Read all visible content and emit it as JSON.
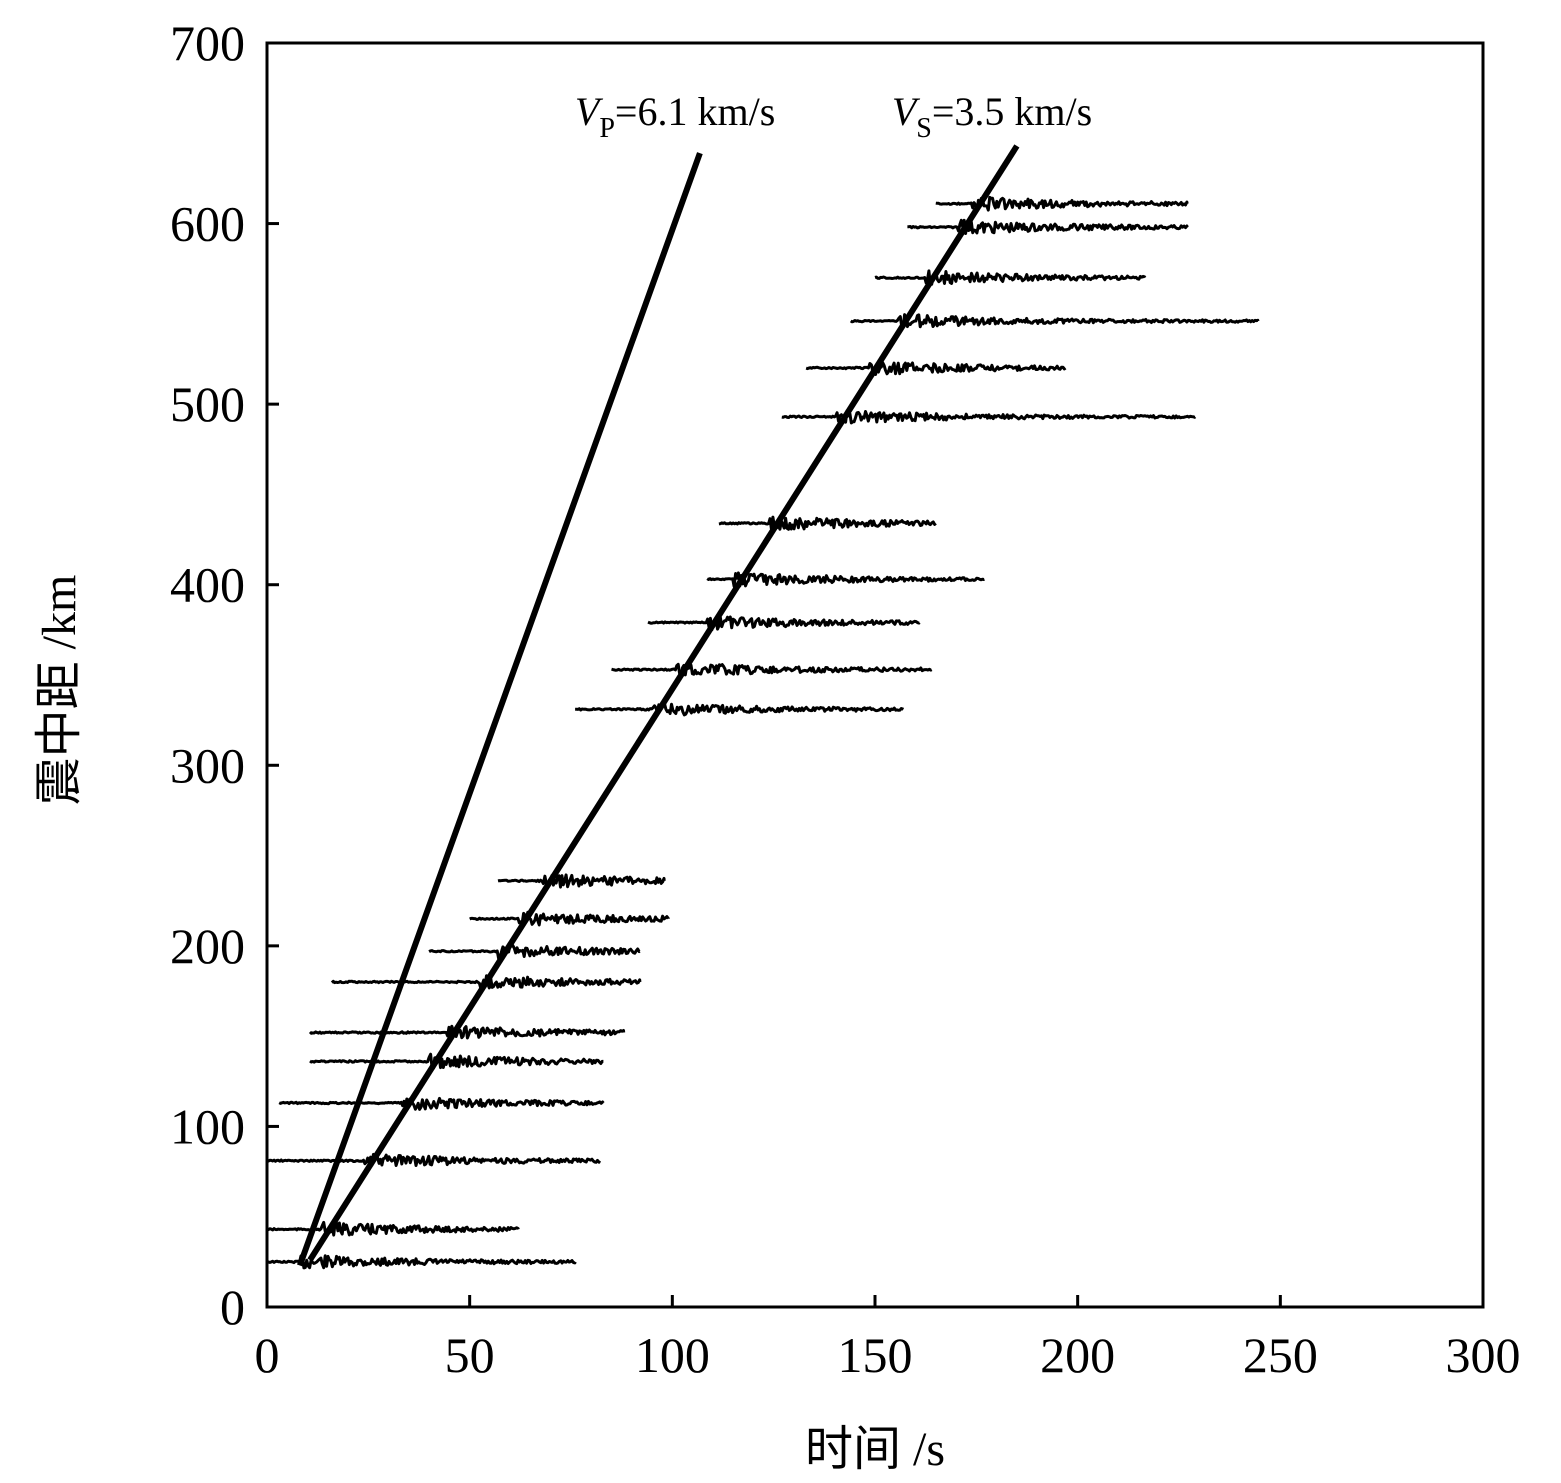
{
  "chart_data": {
    "type": "record-section",
    "xlabel": "时间 /s",
    "ylabel": "震中距 /km",
    "xlim": [
      0,
      300
    ],
    "ylim": [
      0,
      700
    ],
    "xticks": [
      0,
      50,
      100,
      150,
      200,
      250,
      300
    ],
    "yticks": [
      0,
      100,
      200,
      300,
      400,
      500,
      600,
      700
    ],
    "lines": [
      {
        "v": "V",
        "sub": "P",
        "rest": "=6.1 km/s",
        "x": [
          8.1,
          106.8
        ],
        "y": [
          23,
          639
        ]
      },
      {
        "v": "V",
        "sub": "S",
        "rest": "=3.5 km/s",
        "x": [
          10.6,
          185
        ],
        "y": [
          26,
          643
        ]
      }
    ],
    "traces": {
      "distance": [
        25,
        43,
        81,
        113,
        136,
        152,
        180,
        197,
        215,
        236,
        331,
        353,
        379,
        403,
        434,
        493,
        520,
        546,
        570,
        598,
        611
      ],
      "start": [
        0,
        0,
        0,
        3,
        10.6,
        10.6,
        16,
        40,
        50,
        57,
        76,
        85,
        94,
        108.6,
        111.5,
        127,
        133,
        144,
        150,
        158,
        165
      ],
      "end": [
        76,
        62,
        82,
        83,
        83,
        88,
        92,
        92,
        99,
        98,
        157,
        164,
        161,
        177,
        165,
        229,
        197,
        244.5,
        216.6,
        227,
        227
      ]
    }
  }
}
